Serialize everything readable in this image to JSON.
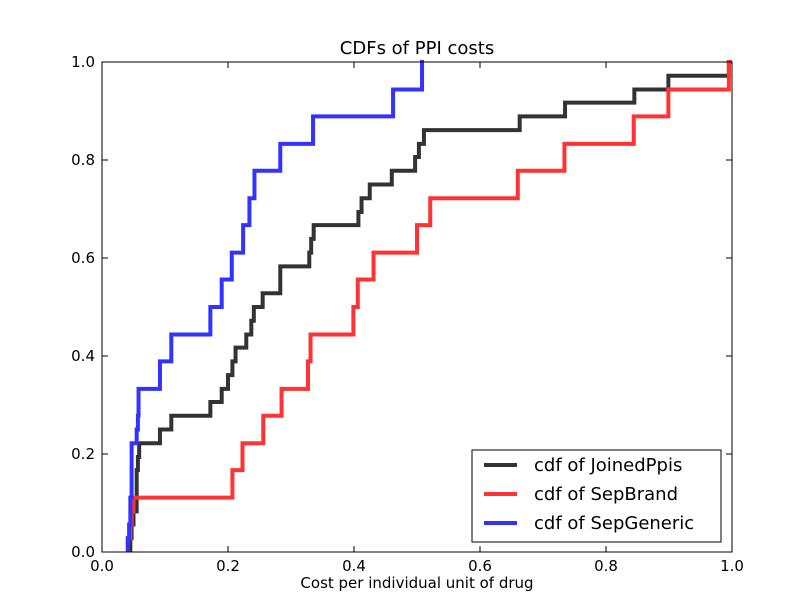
{
  "chart_data": {
    "type": "line",
    "title": "CDFs of PPI costs",
    "xlabel": "Cost per individual unit of drug",
    "ylabel": "",
    "xlim": [
      0.0,
      1.0
    ],
    "ylim": [
      0.0,
      1.0
    ],
    "xticks": [
      "0.0",
      "0.2",
      "0.4",
      "0.6",
      "0.8",
      "1.0"
    ],
    "yticks": [
      "0.0",
      "0.2",
      "0.4",
      "0.6",
      "0.8",
      "1.0"
    ],
    "legend_position": "bottom-right",
    "grid": false,
    "step": true,
    "series": [
      {
        "name": "cdf of JoinedPpis",
        "color": "#333333",
        "x": [
          0.045,
          0.047,
          0.05,
          0.055,
          0.057,
          0.059,
          0.092,
          0.11,
          0.172,
          0.19,
          0.2,
          0.207,
          0.212,
          0.229,
          0.237,
          0.241,
          0.255,
          0.283,
          0.329,
          0.332,
          0.336,
          0.407,
          0.412,
          0.425,
          0.433,
          0.46,
          0.497,
          0.503,
          0.511,
          0.528,
          0.663,
          0.735,
          0.845,
          0.899,
          0.995,
          1.0
        ],
        "y": [
          0.028,
          0.056,
          0.083,
          0.167,
          0.194,
          0.222,
          0.25,
          0.278,
          0.306,
          0.333,
          0.361,
          0.389,
          0.417,
          0.444,
          0.472,
          0.5,
          0.528,
          0.583,
          0.611,
          0.639,
          0.667,
          0.694,
          0.722,
          0.75,
          0.75,
          0.778,
          0.806,
          0.833,
          0.861,
          0.861,
          0.889,
          0.917,
          0.944,
          0.972,
          1.0,
          1.0
        ]
      },
      {
        "name": "cdf of SepBrand",
        "color": "#ff3333",
        "x": [
          0.041,
          0.045,
          0.047,
          0.05,
          0.207,
          0.223,
          0.256,
          0.285,
          0.327,
          0.331,
          0.399,
          0.406,
          0.431,
          0.5,
          0.521,
          0.66,
          0.734,
          0.844,
          0.899,
          0.995,
          1.0
        ],
        "y": [
          0.028,
          0.056,
          0.083,
          0.111,
          0.167,
          0.222,
          0.278,
          0.333,
          0.389,
          0.444,
          0.5,
          0.556,
          0.611,
          0.667,
          0.722,
          0.778,
          0.833,
          0.889,
          0.944,
          1.0,
          1.0
        ]
      },
      {
        "name": "cdf of SepGeneric",
        "color": "#3333ff",
        "x": [
          0.041,
          0.043,
          0.045,
          0.047,
          0.055,
          0.057,
          0.058,
          0.092,
          0.11,
          0.172,
          0.19,
          0.206,
          0.224,
          0.234,
          0.242,
          0.283,
          0.335,
          0.462,
          0.508,
          0.511
        ],
        "y": [
          0.028,
          0.056,
          0.111,
          0.222,
          0.25,
          0.278,
          0.333,
          0.389,
          0.444,
          0.5,
          0.556,
          0.611,
          0.667,
          0.722,
          0.778,
          0.833,
          0.889,
          0.944,
          1.0,
          1.0
        ]
      }
    ]
  }
}
